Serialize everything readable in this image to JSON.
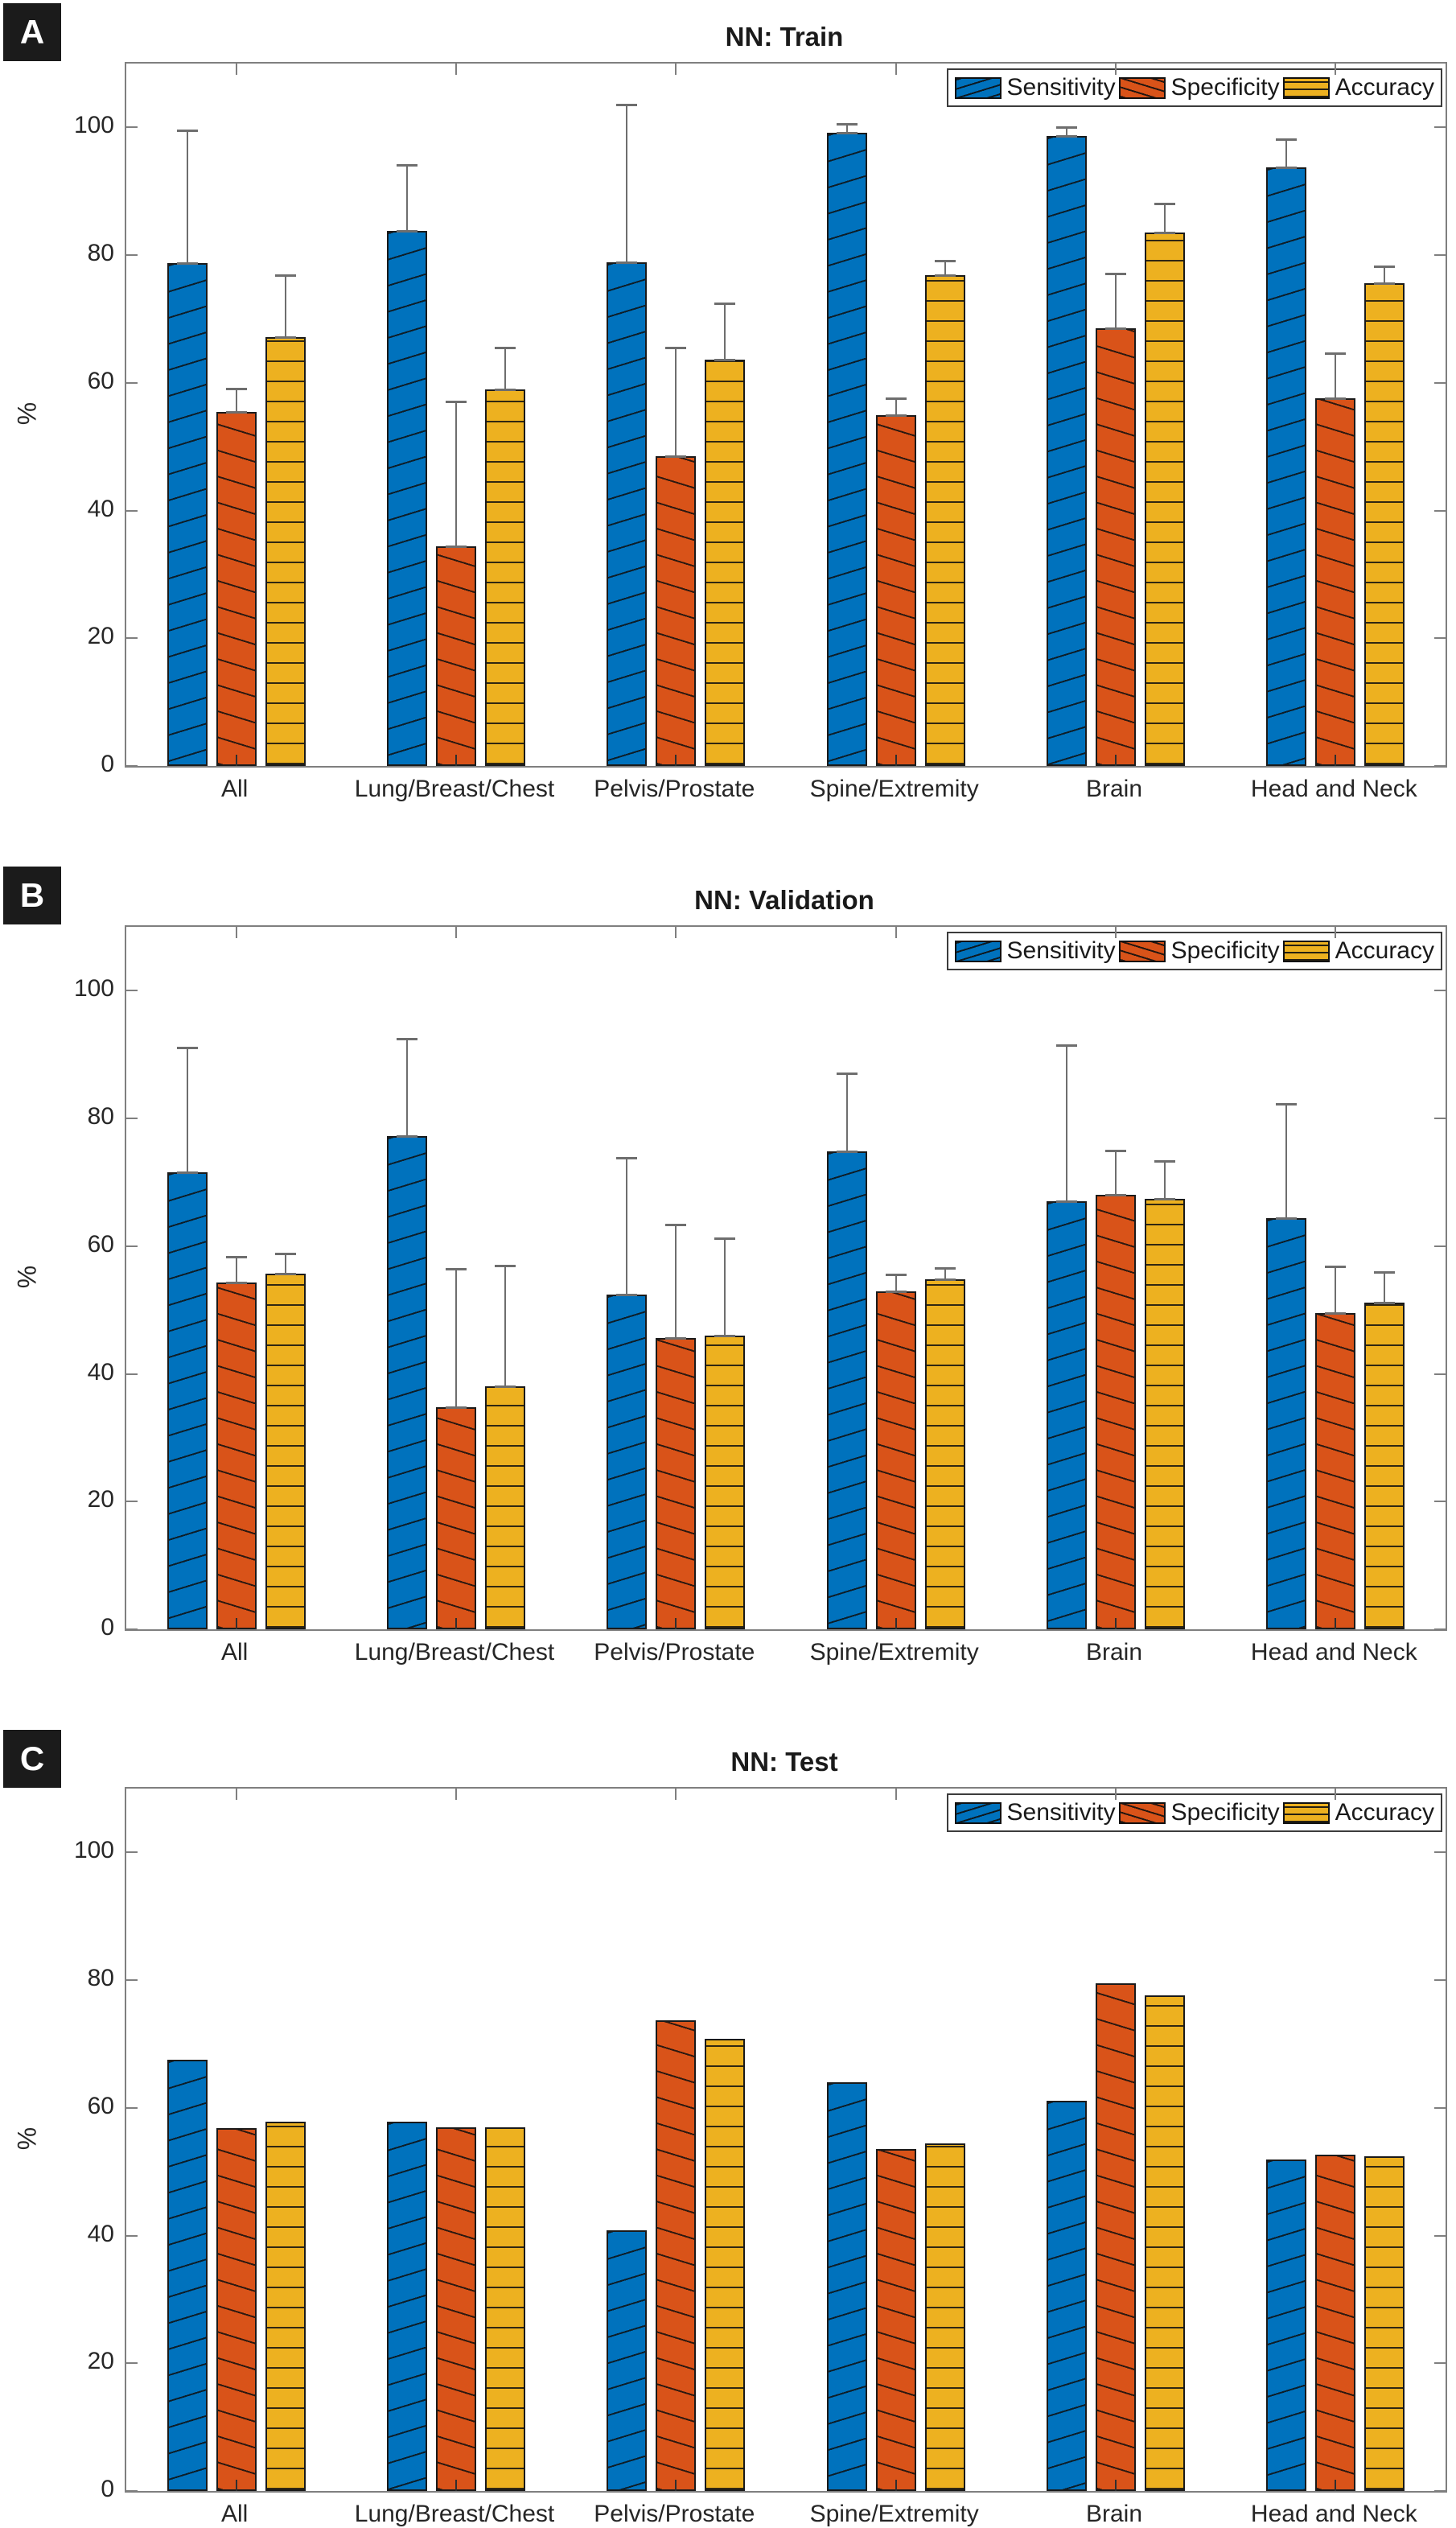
{
  "figure": {
    "description": "Three stacked grouped bar charts of neural network performance",
    "error_bar_color": "#6e6e6e",
    "frame_color": "#7f7f7f"
  },
  "chart_data": [
    {
      "type": "bar",
      "panel_label": "A",
      "title": "NN: Train",
      "ylabel": "%",
      "ylim": [
        0,
        110
      ],
      "yticks": [
        0,
        20,
        40,
        60,
        80,
        100
      ],
      "grid": false,
      "legend_position": "top-right",
      "categories": [
        "All",
        "Lung/Breast/Chest",
        "Pelvis/Prostate",
        "Spine/Extremity",
        "Brain",
        "Head and Neck"
      ],
      "series": [
        {
          "name": "Sensitivity",
          "color": "#0072BD",
          "hatch": "diagonal-up",
          "values": [
            78.7,
            83.8,
            78.9,
            99.2,
            98.6,
            93.7
          ],
          "errors_plus": [
            20.8,
            10.3,
            24.7,
            1.3,
            1.5,
            4.4
          ]
        },
        {
          "name": "Specificity",
          "color": "#D95319",
          "hatch": "diagonal-down",
          "values": [
            55.5,
            34.4,
            48.5,
            55.0,
            68.6,
            57.6
          ],
          "errors_plus": [
            3.6,
            22.7,
            17.0,
            2.6,
            8.5,
            7.0
          ]
        },
        {
          "name": "Accuracy",
          "color": "#EDB120",
          "hatch": "horizontal",
          "values": [
            67.2,
            59.0,
            63.6,
            76.9,
            83.5,
            75.6
          ],
          "errors_plus": [
            9.6,
            6.5,
            8.9,
            2.2,
            4.6,
            2.6
          ]
        }
      ]
    },
    {
      "type": "bar",
      "panel_label": "B",
      "title": "NN: Validation",
      "ylabel": "%",
      "ylim": [
        0,
        110
      ],
      "yticks": [
        0,
        20,
        40,
        60,
        80,
        100
      ],
      "grid": false,
      "legend_position": "top-right",
      "categories": [
        "All",
        "Lung/Breast/Chest",
        "Pelvis/Prostate",
        "Spine/Extremity",
        "Brain",
        "Head and Neck"
      ],
      "series": [
        {
          "name": "Sensitivity",
          "color": "#0072BD",
          "hatch": "diagonal-up",
          "values": [
            71.6,
            77.3,
            52.4,
            74.8,
            67.0,
            64.4
          ],
          "errors_plus": [
            19.5,
            15.2,
            21.5,
            12.3,
            24.5,
            17.9
          ]
        },
        {
          "name": "Specificity",
          "color": "#D95319",
          "hatch": "diagonal-down",
          "values": [
            54.3,
            34.8,
            45.6,
            52.9,
            68.0,
            49.5
          ],
          "errors_plus": [
            4.1,
            21.6,
            17.8,
            2.7,
            7.0,
            7.3
          ]
        },
        {
          "name": "Accuracy",
          "color": "#EDB120",
          "hatch": "horizontal",
          "values": [
            55.7,
            38.1,
            46.0,
            54.8,
            67.4,
            51.2
          ],
          "errors_plus": [
            3.1,
            18.8,
            15.2,
            1.8,
            5.9,
            4.8
          ]
        }
      ]
    },
    {
      "type": "bar",
      "panel_label": "C",
      "title": "NN: Test",
      "ylabel": "%",
      "ylim": [
        0,
        110
      ],
      "yticks": [
        0,
        20,
        40,
        60,
        80,
        100
      ],
      "grid": false,
      "legend_position": "top-right",
      "categories": [
        "All",
        "Lung/Breast/Chest",
        "Pelvis/Prostate",
        "Spine/Extremity",
        "Brain",
        "Head and Neck"
      ],
      "series": [
        {
          "name": "Sensitivity",
          "color": "#0072BD",
          "hatch": "diagonal-up",
          "values": [
            67.6,
            57.9,
            40.8,
            64.0,
            61.1,
            51.9
          ]
        },
        {
          "name": "Specificity",
          "color": "#D95319",
          "hatch": "diagonal-down",
          "values": [
            56.8,
            57.0,
            73.7,
            53.5,
            79.5,
            52.7
          ]
        },
        {
          "name": "Accuracy",
          "color": "#EDB120",
          "hatch": "horizontal",
          "values": [
            57.8,
            56.9,
            70.8,
            54.4,
            77.6,
            52.4
          ]
        }
      ]
    }
  ]
}
